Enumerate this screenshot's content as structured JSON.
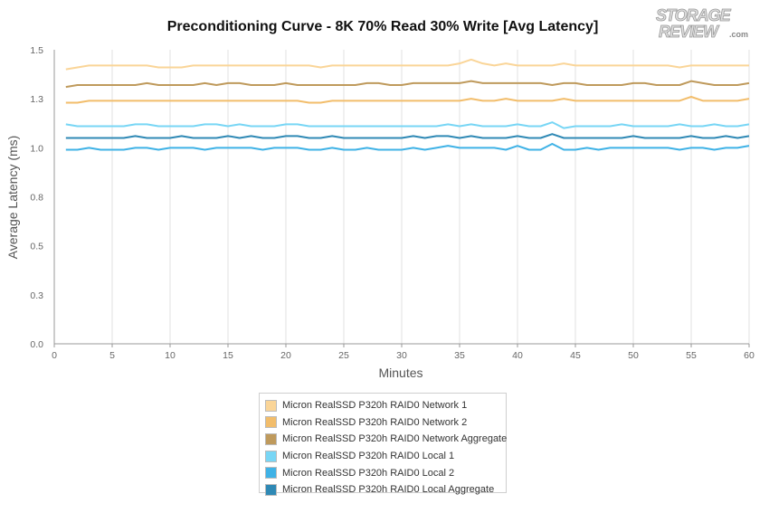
{
  "logo": {
    "line1": "STORAGE",
    "line2": "REVIEW",
    "suffix": ".com"
  },
  "chart_data": {
    "type": "line",
    "title": "Preconditioning Curve - 8K 70% Read 30% Write [Avg Latency]",
    "xlabel": "Minutes",
    "ylabel": "Average Latency (ms)",
    "xlim": [
      0,
      60
    ],
    "ylim": [
      0,
      1.5
    ],
    "x_ticks": [
      0,
      5,
      10,
      15,
      20,
      25,
      30,
      35,
      40,
      45,
      50,
      55,
      60
    ],
    "y_ticks": [
      0.0,
      0.25,
      0.5,
      0.75,
      1.0,
      1.25,
      1.5
    ],
    "y_tick_labels": [
      "0.0",
      "0.3",
      "0.5",
      "0.8",
      "1.0",
      "1.3",
      "1.5"
    ],
    "grid": {
      "vertical": true,
      "horizontal": false
    },
    "legend_position": "bottom-center",
    "x": [
      1,
      2,
      3,
      4,
      5,
      6,
      7,
      8,
      9,
      10,
      11,
      12,
      13,
      14,
      15,
      16,
      17,
      18,
      19,
      20,
      21,
      22,
      23,
      24,
      25,
      26,
      27,
      28,
      29,
      30,
      31,
      32,
      33,
      34,
      35,
      36,
      37,
      38,
      39,
      40,
      41,
      42,
      43,
      44,
      45,
      46,
      47,
      48,
      49,
      50,
      51,
      52,
      53,
      54,
      55,
      56,
      57,
      58,
      59,
      60
    ],
    "series": [
      {
        "name": "Micron RealSSD P320h RAID0 Network 1",
        "color": "#fad598",
        "values": [
          1.4,
          1.41,
          1.42,
          1.42,
          1.42,
          1.42,
          1.42,
          1.42,
          1.41,
          1.41,
          1.41,
          1.42,
          1.42,
          1.42,
          1.42,
          1.42,
          1.42,
          1.42,
          1.42,
          1.42,
          1.42,
          1.42,
          1.41,
          1.42,
          1.42,
          1.42,
          1.42,
          1.42,
          1.42,
          1.42,
          1.42,
          1.42,
          1.42,
          1.42,
          1.43,
          1.45,
          1.43,
          1.42,
          1.43,
          1.42,
          1.42,
          1.42,
          1.42,
          1.43,
          1.42,
          1.42,
          1.42,
          1.42,
          1.42,
          1.42,
          1.42,
          1.42,
          1.42,
          1.41,
          1.42,
          1.42,
          1.42,
          1.42,
          1.42,
          1.42
        ]
      },
      {
        "name": "Micron RealSSD P320h RAID0 Network 2",
        "color": "#f2bd6b",
        "values": [
          1.23,
          1.23,
          1.24,
          1.24,
          1.24,
          1.24,
          1.24,
          1.24,
          1.24,
          1.24,
          1.24,
          1.24,
          1.24,
          1.24,
          1.24,
          1.24,
          1.24,
          1.24,
          1.24,
          1.24,
          1.24,
          1.23,
          1.23,
          1.24,
          1.24,
          1.24,
          1.24,
          1.24,
          1.24,
          1.24,
          1.24,
          1.24,
          1.24,
          1.24,
          1.24,
          1.25,
          1.24,
          1.24,
          1.25,
          1.24,
          1.24,
          1.24,
          1.24,
          1.25,
          1.24,
          1.24,
          1.24,
          1.24,
          1.24,
          1.24,
          1.24,
          1.24,
          1.24,
          1.24,
          1.26,
          1.24,
          1.24,
          1.24,
          1.24,
          1.25
        ]
      },
      {
        "name": "Micron RealSSD P320h RAID0 Network Aggregate",
        "color": "#bf9a5c",
        "values": [
          1.31,
          1.32,
          1.32,
          1.32,
          1.32,
          1.32,
          1.32,
          1.33,
          1.32,
          1.32,
          1.32,
          1.32,
          1.33,
          1.32,
          1.33,
          1.33,
          1.32,
          1.32,
          1.32,
          1.33,
          1.32,
          1.32,
          1.32,
          1.32,
          1.32,
          1.32,
          1.33,
          1.33,
          1.32,
          1.32,
          1.33,
          1.33,
          1.33,
          1.33,
          1.33,
          1.34,
          1.33,
          1.33,
          1.33,
          1.33,
          1.33,
          1.33,
          1.32,
          1.33,
          1.33,
          1.32,
          1.32,
          1.32,
          1.32,
          1.33,
          1.33,
          1.32,
          1.32,
          1.32,
          1.34,
          1.33,
          1.32,
          1.32,
          1.32,
          1.33
        ]
      },
      {
        "name": "Micron RealSSD P320h RAID0 Local 1",
        "color": "#78d6f5",
        "values": [
          1.12,
          1.11,
          1.11,
          1.11,
          1.11,
          1.11,
          1.12,
          1.12,
          1.11,
          1.11,
          1.11,
          1.11,
          1.12,
          1.12,
          1.11,
          1.12,
          1.11,
          1.11,
          1.11,
          1.12,
          1.12,
          1.11,
          1.11,
          1.11,
          1.11,
          1.11,
          1.11,
          1.11,
          1.11,
          1.11,
          1.11,
          1.11,
          1.11,
          1.12,
          1.11,
          1.12,
          1.11,
          1.11,
          1.11,
          1.12,
          1.11,
          1.11,
          1.13,
          1.1,
          1.11,
          1.11,
          1.11,
          1.11,
          1.12,
          1.11,
          1.11,
          1.11,
          1.11,
          1.12,
          1.11,
          1.11,
          1.12,
          1.11,
          1.11,
          1.12
        ]
      },
      {
        "name": "Micron RealSSD P320h RAID0 Local 2",
        "color": "#3fb2e6",
        "values": [
          0.99,
          0.99,
          1.0,
          0.99,
          0.99,
          0.99,
          1.0,
          1.0,
          0.99,
          1.0,
          1.0,
          1.0,
          0.99,
          1.0,
          1.0,
          1.0,
          1.0,
          0.99,
          1.0,
          1.0,
          1.0,
          0.99,
          0.99,
          1.0,
          0.99,
          0.99,
          1.0,
          0.99,
          0.99,
          0.99,
          1.0,
          0.99,
          1.0,
          1.01,
          1.0,
          1.0,
          1.0,
          1.0,
          0.99,
          1.01,
          0.99,
          0.99,
          1.02,
          0.99,
          0.99,
          1.0,
          0.99,
          1.0,
          1.0,
          1.0,
          1.0,
          1.0,
          1.0,
          0.99,
          1.0,
          1.0,
          0.99,
          1.0,
          1.0,
          1.01
        ]
      },
      {
        "name": "Micron RealSSD P320h RAID0 Local Aggregate",
        "color": "#2f89b5",
        "values": [
          1.05,
          1.05,
          1.05,
          1.05,
          1.05,
          1.05,
          1.06,
          1.05,
          1.05,
          1.05,
          1.06,
          1.05,
          1.05,
          1.05,
          1.06,
          1.05,
          1.06,
          1.05,
          1.05,
          1.06,
          1.06,
          1.05,
          1.05,
          1.06,
          1.05,
          1.05,
          1.05,
          1.05,
          1.05,
          1.05,
          1.06,
          1.05,
          1.06,
          1.06,
          1.05,
          1.06,
          1.05,
          1.05,
          1.05,
          1.06,
          1.05,
          1.05,
          1.07,
          1.05,
          1.05,
          1.05,
          1.05,
          1.05,
          1.05,
          1.06,
          1.05,
          1.05,
          1.05,
          1.05,
          1.06,
          1.05,
          1.05,
          1.06,
          1.05,
          1.06
        ]
      }
    ]
  }
}
